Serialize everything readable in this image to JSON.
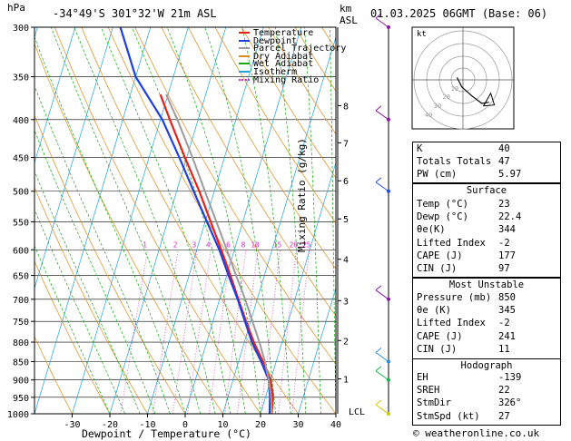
{
  "header": {
    "hpa_label": "hPa",
    "location": "-34°49'S  301°32'W  21m  ASL",
    "km_label": "km",
    "asl_label": "ASL",
    "datetime": "01.03.2025  06GMT  (Base: 06)"
  },
  "legend": [
    {
      "label": "Temperature",
      "color": "#e8211d"
    },
    {
      "label": "Dewpoint",
      "color": "#1f3fe0"
    },
    {
      "label": "Parcel Trajectory",
      "color": "#9b9b9b"
    },
    {
      "label": "Dry Adiabat",
      "color": "#e08a19"
    },
    {
      "label": "Wet Adiabat",
      "color": "#15a915"
    },
    {
      "label": "Isotherm",
      "color": "#1ea1e0"
    },
    {
      "label": "Mixing Ratio",
      "color": "#d62fc4"
    }
  ],
  "chart_data": {
    "type": "line",
    "title": "-34°49'S  301°32'W  21m  ASL",
    "xlabel": "Dewpoint / Temperature (°C)",
    "ylabel": "hPa",
    "right_axis_label": "Mixing Ratio (g/kg)",
    "pressure_levels": [
      300,
      350,
      400,
      450,
      500,
      550,
      600,
      650,
      700,
      750,
      800,
      850,
      900,
      950,
      1000
    ],
    "x_ticks": [
      -30,
      -20,
      -10,
      0,
      10,
      20,
      30,
      40
    ],
    "xlim": [
      -40,
      40
    ],
    "ylim": [
      1000,
      300
    ],
    "height_km_ticks": [
      {
        "km": "8",
        "p": 383
      },
      {
        "km": "7",
        "p": 430
      },
      {
        "km": "6",
        "p": 484
      },
      {
        "km": "5",
        "p": 545
      },
      {
        "km": "4",
        "p": 618
      },
      {
        "km": "3",
        "p": 703
      },
      {
        "km": "2",
        "p": 796
      },
      {
        "km": "1",
        "p": 897
      }
    ],
    "lcl_label": "LCL",
    "lcl_pressure": 1000,
    "mixing_ratio_labels": [
      "1",
      "2",
      "3",
      "4",
      "6",
      "8",
      "10",
      "15",
      "20",
      "25"
    ],
    "series": [
      {
        "name": "Temperature",
        "color": "#e8211d",
        "points": [
          [
            1000,
            23.0
          ],
          [
            950,
            22.0
          ],
          [
            900,
            20.0
          ],
          [
            850,
            16.5
          ],
          [
            800,
            12.5
          ],
          [
            750,
            8.8
          ],
          [
            700,
            5.0
          ],
          [
            650,
            1.0
          ],
          [
            600,
            -3.5
          ],
          [
            550,
            -8.5
          ],
          [
            500,
            -14.0
          ],
          [
            450,
            -20.5
          ],
          [
            400,
            -27.5
          ],
          [
            370,
            -32.0
          ]
        ]
      },
      {
        "name": "Dewpoint",
        "color": "#1f3fe0",
        "points": [
          [
            1000,
            22.4
          ],
          [
            950,
            21.2
          ],
          [
            900,
            19.5
          ],
          [
            850,
            16.0
          ],
          [
            800,
            12.0
          ],
          [
            750,
            8.5
          ],
          [
            700,
            4.8
          ],
          [
            650,
            0.5
          ],
          [
            600,
            -4.0
          ],
          [
            550,
            -9.5
          ],
          [
            500,
            -15.5
          ],
          [
            450,
            -22.0
          ],
          [
            400,
            -29.5
          ],
          [
            350,
            -40.0
          ],
          [
            300,
            -48.0
          ]
        ]
      },
      {
        "name": "Parcel Trajectory",
        "color": "#9b9b9b",
        "points": [
          [
            1000,
            23.0
          ],
          [
            950,
            21.5
          ],
          [
            900,
            19.5
          ],
          [
            850,
            17.0
          ],
          [
            800,
            14.0
          ],
          [
            750,
            10.5
          ],
          [
            700,
            6.8
          ],
          [
            650,
            2.5
          ],
          [
            600,
            -2.0
          ],
          [
            550,
            -7.0
          ],
          [
            500,
            -12.5
          ],
          [
            450,
            -18.5
          ],
          [
            400,
            -25.5
          ],
          [
            370,
            -30.5
          ]
        ]
      }
    ]
  },
  "hodograph": {
    "label": "kt",
    "ring_labels": [
      "10",
      "20",
      "30",
      "40"
    ],
    "trace": [
      [
        -5,
        2
      ],
      [
        -1,
        -6
      ],
      [
        8,
        -14
      ],
      [
        16,
        -20
      ],
      [
        22,
        -19
      ]
    ]
  },
  "indices": [
    {
      "label": "K",
      "value": "40"
    },
    {
      "label": "Totals Totals",
      "value": "47"
    },
    {
      "label": "PW (cm)",
      "value": "5.97"
    }
  ],
  "surface": {
    "title": "Surface",
    "rows": [
      {
        "label": "Temp (°C)",
        "value": "23"
      },
      {
        "label": "Dewp (°C)",
        "value": "22.4"
      },
      {
        "label": "θe(K)",
        "value": "344"
      },
      {
        "label": "Lifted Index",
        "value": "-2"
      },
      {
        "label": "CAPE (J)",
        "value": "177"
      },
      {
        "label": "CIN (J)",
        "value": "97"
      }
    ]
  },
  "most_unstable": {
    "title": "Most Unstable",
    "rows": [
      {
        "label": "Pressure (mb)",
        "value": "850"
      },
      {
        "label": "θe (K)",
        "value": "345"
      },
      {
        "label": "Lifted Index",
        "value": "-2"
      },
      {
        "label": "CAPE (J)",
        "value": "241"
      },
      {
        "label": "CIN (J)",
        "value": "11"
      }
    ]
  },
  "hodograph_stats": {
    "title": "Hodograph",
    "rows": [
      {
        "label": "EH",
        "value": "-139"
      },
      {
        "label": "SREH",
        "value": "22"
      },
      {
        "label": "StmDir",
        "value": "326°"
      },
      {
        "label": "StmSpd (kt)",
        "value": "27"
      }
    ]
  },
  "footer": {
    "copyright": "© weatheronline.co.uk"
  }
}
